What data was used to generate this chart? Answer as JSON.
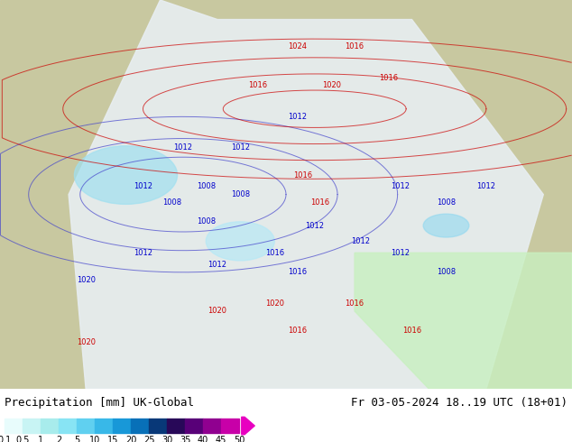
{
  "title_left": "Precipitation [mm] UK-Global",
  "title_right": "Fr 03-05-2024 18..19 UTC (18+01)",
  "colorbar_labels": [
    "0.1",
    "0.5",
    "1",
    "2",
    "5",
    "10",
    "15",
    "20",
    "25",
    "30",
    "35",
    "40",
    "45",
    "50"
  ],
  "colorbar_colors": [
    "#e0f8f8",
    "#c0f0f0",
    "#a0e8e8",
    "#80d8f0",
    "#60c8f0",
    "#40b0e8",
    "#2090d8",
    "#1060b0",
    "#083080",
    "#200060",
    "#500080",
    "#8800a0",
    "#c000b0",
    "#e000c0",
    "#ff00d0"
  ],
  "background_color": "#ffffff",
  "map_background": "#c8c8a0",
  "font_size_label": 9,
  "font_size_title": 9
}
